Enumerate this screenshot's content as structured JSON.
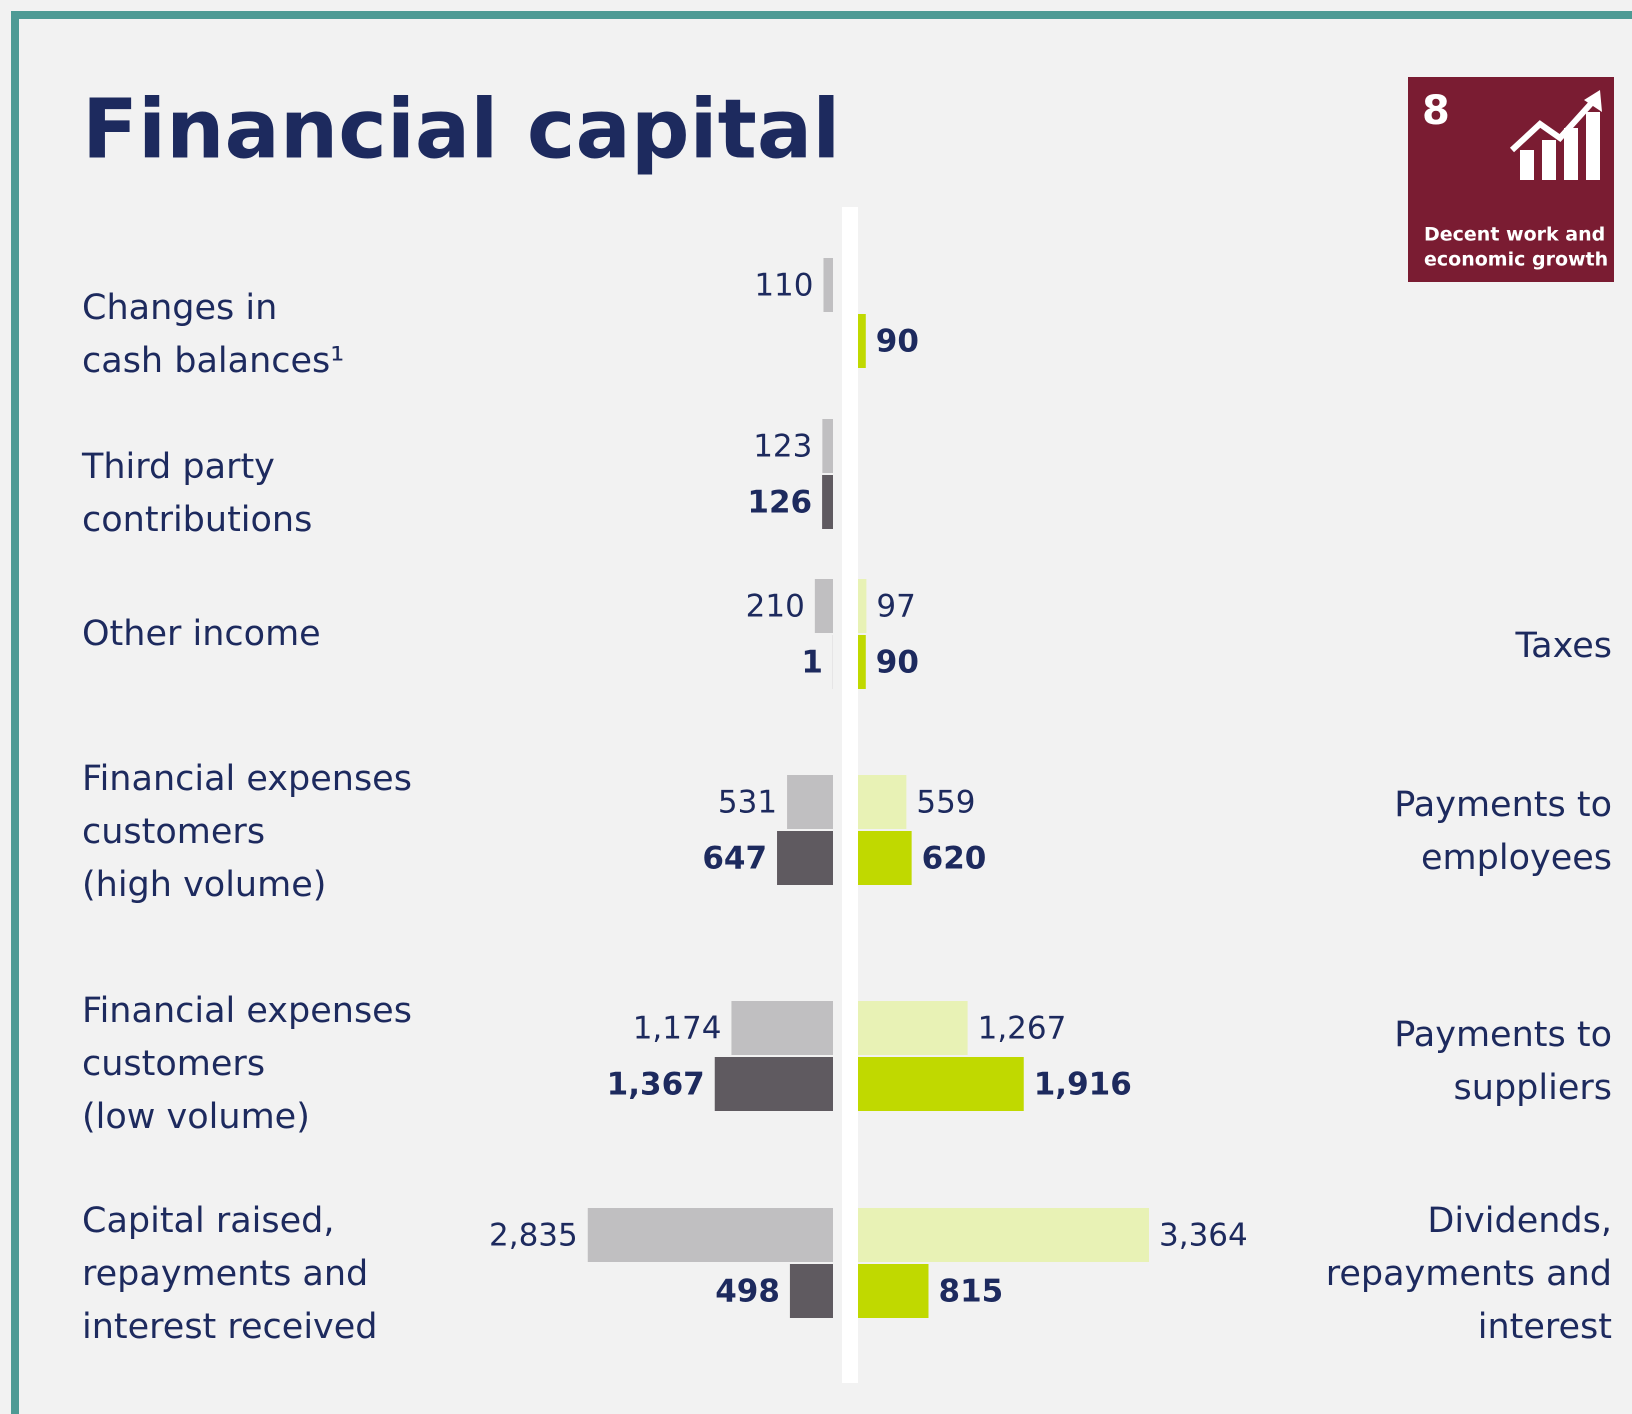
{
  "chart_data": {
    "type": "butterfly",
    "title": "Financial capital",
    "categories": [
      [
        "Changes in",
        "cash balances¹"
      ],
      [
        "Third party",
        "contributions"
      ],
      [
        "Other income"
      ],
      [
        "Financial expenses",
        "customers",
        "(high volume)"
      ],
      [
        "Financial expenses",
        "customers",
        "(low volume)"
      ],
      [
        "Capital raised,",
        "repayments and",
        "interest received"
      ]
    ],
    "right_categories": [
      null,
      null,
      [
        "Taxes"
      ],
      [
        "Payments to",
        "employees"
      ],
      [
        "Payments to",
        "suppliers"
      ],
      [
        "Dividends,",
        "repayments and",
        "interest"
      ]
    ],
    "series": [
      {
        "color": "#c0bfc1",
        "side": "left",
        "bold": false,
        "values": [
          110,
          123,
          210,
          531,
          1174,
          2835
        ],
        "value_labels": [
          "110",
          "123",
          "210",
          "531",
          "1,174",
          "2,835"
        ]
      },
      {
        "color": "#5f5a60",
        "side": "left",
        "bold": true,
        "values": [
          null,
          126,
          1,
          647,
          1367,
          498
        ],
        "value_labels": [
          null,
          "126",
          "1",
          "647",
          "1,367",
          "498"
        ]
      },
      {
        "color": "#e8f2b5",
        "side": "right",
        "bold": false,
        "values": [
          null,
          null,
          97,
          559,
          1267,
          3364
        ],
        "value_labels": [
          null,
          null,
          "97",
          "559",
          "1,267",
          "3,364"
        ]
      },
      {
        "color": "#c0d900",
        "side": "right",
        "bold": true,
        "values": [
          90,
          null,
          90,
          620,
          1916,
          815
        ],
        "value_labels": [
          "90",
          null,
          "90",
          "620",
          "1,916",
          "815"
        ]
      }
    ]
  },
  "badge": {
    "number": "8",
    "text": [
      "Decent work and",
      "economic growth"
    ]
  }
}
